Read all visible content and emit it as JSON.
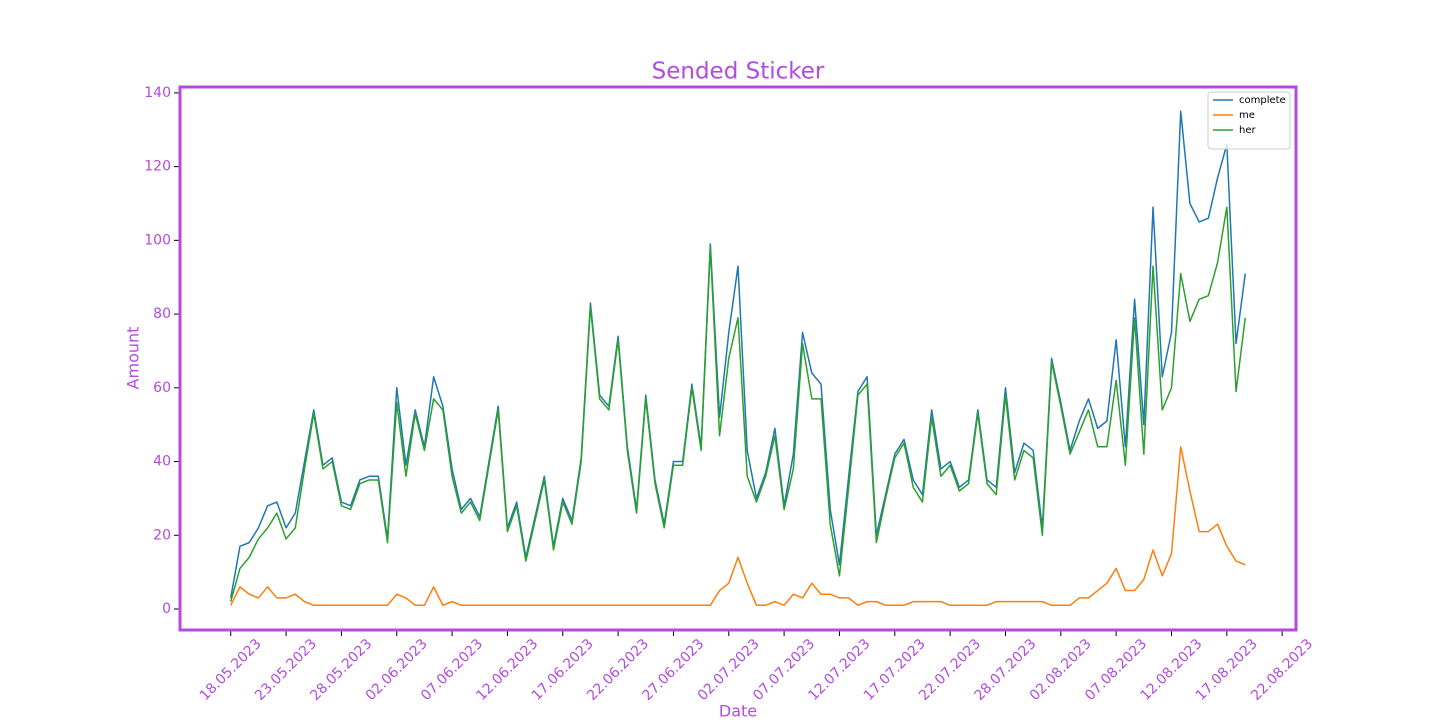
{
  "chart_data": {
    "type": "line",
    "title": "Sended Sticker",
    "x_label": "Date",
    "y_label": "Amount",
    "categories": [
      "18.05.2023",
      null,
      null,
      null,
      null,
      null,
      "23.05.2023",
      null,
      null,
      null,
      null,
      null,
      "28.05.2023",
      null,
      null,
      null,
      null,
      null,
      "02.06.2023",
      null,
      null,
      null,
      null,
      null,
      "07.06.2023",
      null,
      null,
      null,
      null,
      null,
      "12.06.2023",
      null,
      null,
      null,
      null,
      null,
      "17.06.2023",
      null,
      null,
      null,
      null,
      null,
      "22.06.2023",
      null,
      null,
      null,
      null,
      null,
      "27.06.2023",
      null,
      null,
      null,
      null,
      null,
      "02.07.2023",
      null,
      null,
      null,
      null,
      null,
      "07.07.2023",
      null,
      null,
      null,
      null,
      null,
      "12.07.2023",
      null,
      null,
      null,
      null,
      null,
      "17.07.2023",
      null,
      null,
      null,
      null,
      null,
      "22.07.2023",
      null,
      null,
      null,
      null,
      null,
      "28.07.2023",
      null,
      null,
      null,
      null,
      null,
      "02.08.2023",
      null,
      null,
      null,
      null,
      null,
      "07.08.2023",
      null,
      null,
      null,
      null,
      null,
      "12.08.2023",
      null,
      null,
      null,
      null,
      null,
      "17.08.2023",
      null,
      null,
      null,
      null,
      null,
      "22.08.2023"
    ],
    "series": [
      {
        "name": "complete",
        "color": "#1f77b4",
        "values": [
          3,
          17,
          18,
          22,
          28,
          29,
          22,
          26,
          40,
          54,
          39,
          41,
          29,
          28,
          35,
          36,
          36,
          19,
          60,
          39,
          54,
          44,
          63,
          55,
          38,
          27,
          30,
          25,
          40,
          55,
          22,
          29,
          14,
          25,
          36,
          17,
          30,
          24,
          41,
          83,
          58,
          55,
          74,
          44,
          27,
          58,
          35,
          23,
          40,
          40,
          61,
          44,
          99,
          52,
          75,
          93,
          43,
          30,
          37,
          49,
          28,
          42,
          75,
          64,
          61,
          27,
          12,
          36,
          59,
          63,
          20,
          31,
          42,
          46,
          35,
          31,
          54,
          38,
          40,
          33,
          35,
          54,
          35,
          33,
          60,
          37,
          45,
          43,
          22,
          68,
          56,
          43,
          51,
          57,
          49,
          51,
          73,
          44,
          84,
          50,
          109,
          63,
          75,
          135,
          110,
          105,
          106,
          117,
          126,
          72,
          91,
          null,
          null,
          null,
          null
        ]
      },
      {
        "name": "me",
        "color": "#ff7f0e",
        "values": [
          1,
          6,
          4,
          3,
          6,
          3,
          3,
          4,
          2,
          1,
          1,
          1,
          1,
          1,
          1,
          1,
          1,
          1,
          4,
          3,
          1,
          1,
          6,
          1,
          2,
          1,
          1,
          1,
          1,
          1,
          1,
          1,
          1,
          1,
          1,
          1,
          1,
          1,
          1,
          1,
          1,
          1,
          1,
          1,
          1,
          1,
          1,
          1,
          1,
          1,
          1,
          1,
          1,
          5,
          7,
          14,
          7,
          1,
          1,
          2,
          1,
          4,
          3,
          7,
          4,
          4,
          3,
          3,
          1,
          2,
          2,
          1,
          1,
          1,
          2,
          2,
          2,
          2,
          1,
          1,
          1,
          1,
          1,
          2,
          2,
          2,
          2,
          2,
          2,
          1,
          1,
          1,
          3,
          3,
          5,
          7,
          11,
          5,
          5,
          8,
          16,
          9,
          15,
          44,
          32,
          21,
          21,
          23,
          17,
          13,
          12,
          null,
          null,
          null,
          null
        ]
      },
      {
        "name": "her",
        "color": "#2ca02c",
        "values": [
          2,
          11,
          14,
          19,
          22,
          26,
          19,
          22,
          38,
          53,
          38,
          40,
          28,
          27,
          34,
          35,
          35,
          18,
          56,
          36,
          53,
          43,
          57,
          54,
          36,
          26,
          29,
          24,
          39,
          54,
          21,
          28,
          13,
          24,
          35,
          16,
          29,
          23,
          40,
          82,
          57,
          54,
          73,
          43,
          26,
          57,
          34,
          22,
          39,
          39,
          60,
          43,
          98,
          47,
          68,
          79,
          36,
          29,
          36,
          47,
          27,
          38,
          72,
          57,
          57,
          23,
          9,
          33,
          58,
          61,
          18,
          30,
          41,
          45,
          33,
          29,
          52,
          36,
          39,
          32,
          34,
          53,
          34,
          31,
          58,
          35,
          43,
          41,
          20,
          67,
          55,
          42,
          48,
          54,
          44,
          44,
          62,
          39,
          79,
          42,
          93,
          54,
          60,
          91,
          78,
          84,
          85,
          94,
          109,
          59,
          79,
          null,
          null,
          null,
          null
        ]
      }
    ],
    "ylim": [
      -5.7,
      141.6
    ],
    "yticks": [
      0,
      20,
      40,
      60,
      80,
      100,
      120,
      140
    ],
    "grid": false,
    "legend": "upper right",
    "text_color": "#b44be1",
    "frame_color": "#b54ae0"
  }
}
